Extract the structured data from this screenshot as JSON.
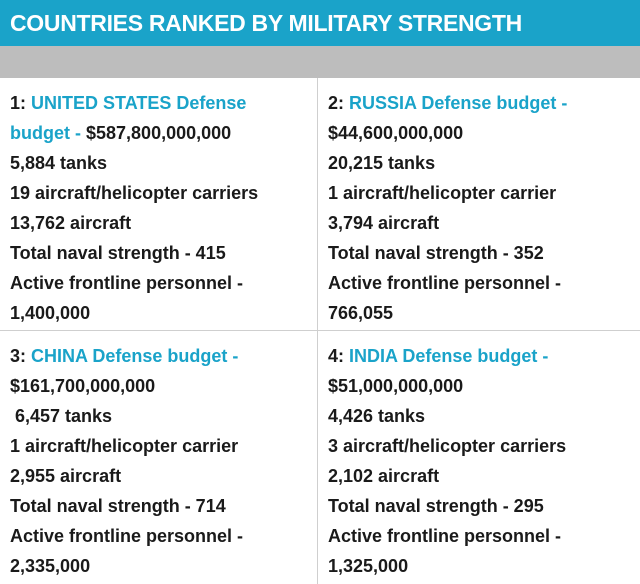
{
  "header": {
    "title": "COUNTRIES RANKED BY MILITARY STRENGTH"
  },
  "colors": {
    "accent": "#1aa3c9",
    "subbar": "#bdbdbd",
    "text": "#1a1a1a"
  },
  "countries": [
    {
      "rank_label": "1:",
      "heading_lines": [
        "UNITED STATES Defense",
        "budget -"
      ],
      "budget": "$587,800,000,000",
      "stats": [
        "5,884 tanks",
        "19 aircraft/helicopter carriers",
        "13,762 aircraft",
        "Total naval strength - 415",
        "Active frontline personnel -",
        "1,400,000"
      ]
    },
    {
      "rank_label": "2:",
      "heading_lines": [
        "RUSSIA Defense budget -"
      ],
      "budget": "$44,600,000,000",
      "stats": [
        "20,215 tanks",
        "1 aircraft/helicopter carrier",
        "3,794 aircraft",
        "Total naval strength - 352",
        "Active frontline personnel -",
        "766,055"
      ]
    },
    {
      "rank_label": "3:",
      "heading_lines": [
        "CHINA Defense budget -"
      ],
      "budget": "$161,700,000,000",
      "stats": [
        " 6,457 tanks",
        "1 aircraft/helicopter carrier",
        "2,955 aircraft",
        "Total naval strength - 714",
        "Active frontline personnel -",
        "2,335,000"
      ]
    },
    {
      "rank_label": "4:",
      "heading_lines": [
        "INDIA Defense budget -"
      ],
      "budget": "$51,000,000,000",
      "stats": [
        "4,426 tanks",
        "3 aircraft/helicopter carriers",
        "2,102 aircraft",
        "Total naval strength - 295",
        "Active frontline personnel -",
        "1,325,000"
      ]
    }
  ]
}
